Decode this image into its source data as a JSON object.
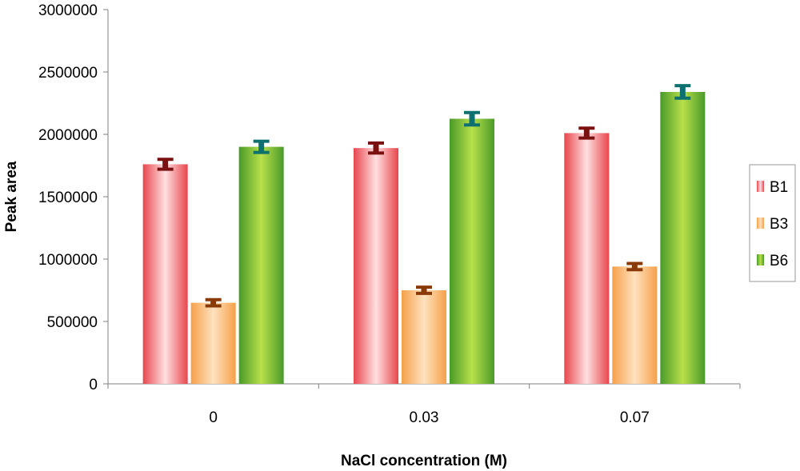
{
  "chart_data": {
    "type": "bar",
    "title": "",
    "xlabel": "NaCl concentration (M)",
    "ylabel": "Peak area",
    "categories": [
      "0",
      "0.03",
      "0.07"
    ],
    "ylim": [
      0,
      3000000
    ],
    "yticks": [
      "0",
      "500000",
      "1000000",
      "1500000",
      "2000000",
      "2500000",
      "3000000"
    ],
    "grid": false,
    "legend_position": "right",
    "series": [
      {
        "name": "B1",
        "values": [
          1760000,
          1890000,
          2010000
        ],
        "errors": [
          40000,
          40000,
          40000
        ],
        "color": "#e8464c",
        "highlight": "#ffe0e2",
        "error_color": "#7a1010"
      },
      {
        "name": "B3",
        "values": [
          650000,
          750000,
          940000
        ],
        "errors": [
          25000,
          25000,
          25000
        ],
        "color": "#f5a04a",
        "highlight": "#ffe2bf",
        "error_color": "#8a3a08"
      },
      {
        "name": "B6",
        "values": [
          1900000,
          2125000,
          2340000
        ],
        "errors": [
          45000,
          50000,
          50000
        ],
        "color": "#4a9a2a",
        "highlight": "#b8e04a",
        "error_color": "#0f7070"
      }
    ]
  }
}
